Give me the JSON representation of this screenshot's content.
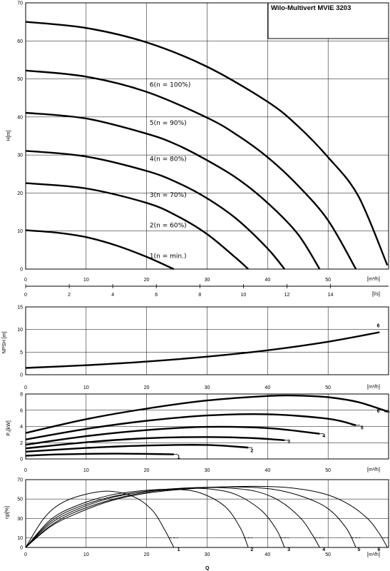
{
  "title": "Wilo-Multivert MVIE 3203",
  "q_axis": {
    "ticks_m3h": [
      "0",
      "10",
      "20",
      "30",
      "40",
      "50"
    ],
    "unit_m3h": "[m³/h]",
    "ticks_ls": [
      "0",
      "2",
      "4",
      "6",
      "8",
      "10",
      "12",
      "14"
    ],
    "unit_ls": "[l/s]",
    "label": "Q"
  },
  "chart_data": [
    {
      "id": "head",
      "type": "line",
      "ylabel": "H[m]",
      "xlim": [
        0,
        60
      ],
      "ylim": [
        0,
        70
      ],
      "xticks": [
        0,
        10,
        20,
        30,
        40,
        50
      ],
      "yticks": [
        0,
        10,
        20,
        30,
        40,
        50,
        60,
        70
      ],
      "series": [
        {
          "name": "1(n = min.)",
          "x": [
            0,
            5,
            10,
            15,
            20,
            24.5
          ],
          "y": [
            10.2,
            9.6,
            8.4,
            6.2,
            3.2,
            0
          ]
        },
        {
          "name": "2(n = 60%)",
          "x": [
            0,
            10,
            20,
            25,
            30,
            35,
            36.8
          ],
          "y": [
            22.6,
            21.2,
            17.4,
            14.0,
            9.2,
            2.6,
            0
          ]
        },
        {
          "name": "3(n = 70%)",
          "x": [
            0,
            10,
            20,
            25,
            30,
            35,
            40,
            42.8
          ],
          "y": [
            31.1,
            29.6,
            25.8,
            22.8,
            18.6,
            13.0,
            5.4,
            0
          ]
        },
        {
          "name": "4(n = 80%)",
          "x": [
            0,
            10,
            20,
            25,
            30,
            35,
            40,
            45,
            48.6
          ],
          "y": [
            41.1,
            39.6,
            35.6,
            32.7,
            28.6,
            23.8,
            17.4,
            9.2,
            0
          ]
        },
        {
          "name": "5(n = 90%)",
          "x": [
            0,
            10,
            20,
            30,
            35,
            40,
            45,
            50,
            54.6
          ],
          "y": [
            52.2,
            50.6,
            46.6,
            39.8,
            35.2,
            29.4,
            22.0,
            12.8,
            0
          ]
        },
        {
          "name": "6(n = 100%)",
          "x": [
            0,
            10,
            20,
            30,
            40,
            45,
            50,
            55,
            59.8
          ],
          "y": [
            65.0,
            63.4,
            59.6,
            53.2,
            44.0,
            37.6,
            29.4,
            19.2,
            1.0
          ]
        }
      ]
    },
    {
      "id": "npsh",
      "type": "line",
      "ylabel": "NPSH [m]",
      "xlim": [
        0,
        60
      ],
      "ylim": [
        0,
        15
      ],
      "xticks": [
        0,
        10,
        20,
        30,
        40,
        50
      ],
      "yticks": [
        0,
        5,
        10,
        15
      ],
      "series": [
        {
          "name": "6",
          "x": [
            0,
            10,
            20,
            30,
            40,
            50,
            58.5
          ],
          "y": [
            1.5,
            2.1,
            2.9,
            4.0,
            5.4,
            7.3,
            9.4
          ]
        }
      ]
    },
    {
      "id": "power",
      "type": "line",
      "ylabel": "P₂[kW]",
      "xlim": [
        0,
        60
      ],
      "ylim": [
        0,
        8
      ],
      "xticks": [
        0,
        10,
        20,
        30,
        40,
        50
      ],
      "yticks": [
        0,
        2,
        4,
        6,
        8
      ],
      "series": [
        {
          "name": "1",
          "x": [
            0,
            5,
            10,
            15,
            20,
            24.5
          ],
          "y": [
            0.4,
            0.55,
            0.62,
            0.65,
            0.62,
            0.56
          ]
        },
        {
          "name": "2",
          "x": [
            0,
            10,
            20,
            30,
            36.8
          ],
          "y": [
            0.9,
            1.35,
            1.65,
            1.72,
            1.4
          ]
        },
        {
          "name": "3",
          "x": [
            0,
            10,
            20,
            30,
            38,
            42.8
          ],
          "y": [
            1.3,
            2.05,
            2.55,
            2.7,
            2.55,
            2.3
          ]
        },
        {
          "name": "4",
          "x": [
            0,
            10,
            20,
            30,
            40,
            48.6
          ],
          "y": [
            1.75,
            2.8,
            3.55,
            3.95,
            3.8,
            3.1
          ]
        },
        {
          "name": "5",
          "x": [
            0,
            10,
            20,
            30,
            40,
            50,
            54.6
          ],
          "y": [
            2.4,
            3.7,
            4.7,
            5.35,
            5.5,
            4.95,
            4.15
          ]
        },
        {
          "name": "6",
          "x": [
            0,
            10,
            20,
            30,
            40,
            45,
            50,
            55,
            60
          ],
          "y": [
            3.2,
            4.9,
            6.2,
            7.2,
            7.75,
            7.8,
            7.6,
            7.0,
            5.8
          ]
        }
      ]
    },
    {
      "id": "efficiency",
      "type": "line",
      "ylabel": "ηp[%]",
      "xlim": [
        0,
        60
      ],
      "ylim": [
        0,
        70
      ],
      "xticks": [
        0,
        10,
        20,
        30,
        40,
        50
      ],
      "yticks": [
        0,
        10,
        30,
        50,
        70
      ],
      "series": [
        {
          "name": "1",
          "x": [
            0,
            3,
            6,
            10,
            14,
            18,
            21,
            23,
            24.5
          ],
          "y": [
            0,
            30,
            46,
            55,
            58,
            52,
            38,
            18,
            0
          ]
        },
        {
          "name": "2",
          "x": [
            0,
            4,
            8,
            14,
            20,
            25,
            29,
            33,
            35.5,
            36.8
          ],
          "y": [
            0,
            28,
            42,
            54,
            59,
            60,
            56,
            42,
            20,
            0
          ]
        },
        {
          "name": "3",
          "x": [
            0,
            4,
            8,
            14,
            20,
            26,
            31,
            35,
            39,
            41.5,
            42.8
          ],
          "y": [
            0,
            26,
            40,
            52,
            58,
            61,
            60,
            54,
            38,
            18,
            0
          ]
        },
        {
          "name": "4",
          "x": [
            0,
            4,
            8,
            14,
            20,
            27,
            33,
            38,
            42,
            45.5,
            47.5,
            48.6
          ],
          "y": [
            0,
            24,
            38,
            51,
            58,
            61.5,
            61.5,
            58,
            48,
            30,
            12,
            0
          ]
        },
        {
          "name": "5",
          "x": [
            0,
            4,
            8,
            14,
            20,
            28,
            35,
            41,
            46,
            50,
            53,
            54.6
          ],
          "y": [
            0,
            22,
            36,
            49,
            57,
            61.5,
            62.5,
            60,
            52,
            40,
            20,
            0
          ]
        },
        {
          "name": "6",
          "x": [
            0,
            4,
            8,
            14,
            20,
            28,
            36,
            43,
            49,
            53,
            56.5,
            58.5,
            59.8
          ],
          "y": [
            0,
            21,
            34,
            48,
            56,
            61,
            63,
            62,
            56,
            46,
            30,
            14,
            0
          ]
        }
      ]
    }
  ]
}
